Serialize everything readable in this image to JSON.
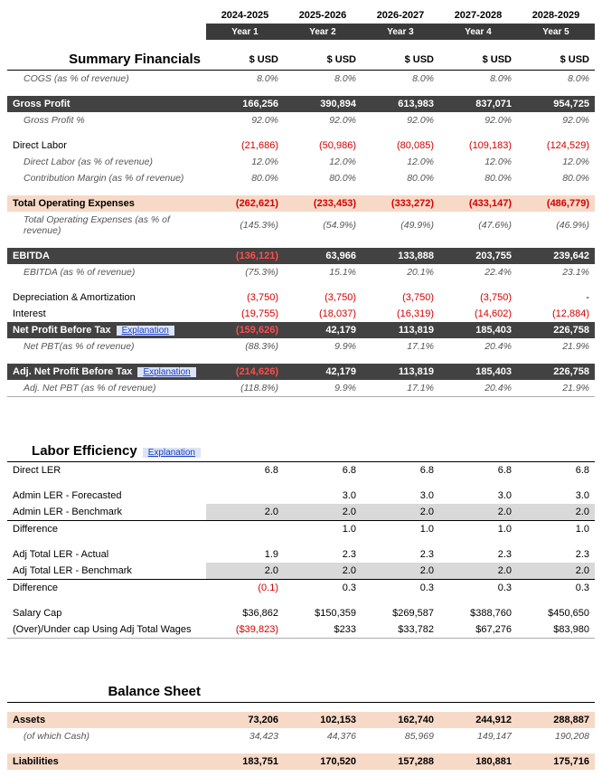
{
  "periods": [
    "2024-2025",
    "2025-2026",
    "2026-2027",
    "2027-2028",
    "2028-2029"
  ],
  "year_labels": [
    "Year 1",
    "Year 2",
    "Year 3",
    "Year 4",
    "Year 5"
  ],
  "usd": "$ USD",
  "explanation_label": "Explanation",
  "summary_title": "Summary Financials",
  "cogs": {
    "label": "COGS (as % of revenue)",
    "vals": [
      "8.0%",
      "8.0%",
      "8.0%",
      "8.0%",
      "8.0%"
    ]
  },
  "gross_profit": {
    "label": "Gross Profit",
    "vals": [
      "166,256",
      "390,894",
      "613,983",
      "837,071",
      "954,725"
    ]
  },
  "gross_profit_pct": {
    "label": "Gross Profit %",
    "vals": [
      "92.0%",
      "92.0%",
      "92.0%",
      "92.0%",
      "92.0%"
    ]
  },
  "direct_labor": {
    "label": "Direct Labor",
    "vals": [
      "(21,686)",
      "(50,986)",
      "(80,085)",
      "(109,183)",
      "(124,529)"
    ],
    "neg": [
      true,
      true,
      true,
      true,
      true
    ]
  },
  "direct_labor_pct": {
    "label": "Direct Labor (as % of revenue)",
    "vals": [
      "12.0%",
      "12.0%",
      "12.0%",
      "12.0%",
      "12.0%"
    ]
  },
  "contrib_margin": {
    "label": "Contribution Margin (as % of revenue)",
    "vals": [
      "80.0%",
      "80.0%",
      "80.0%",
      "80.0%",
      "80.0%"
    ]
  },
  "opex": {
    "label": "Total Operating Expenses",
    "vals": [
      "(262,621)",
      "(233,453)",
      "(333,272)",
      "(433,147)",
      "(486,779)"
    ],
    "neg": [
      true,
      true,
      true,
      true,
      true
    ]
  },
  "opex_pct": {
    "label": "Total Operating Expenses (as % of revenue)",
    "vals": [
      "(145.3%)",
      "(54.9%)",
      "(49.9%)",
      "(47.6%)",
      "(46.9%)"
    ],
    "neg": [
      true,
      true,
      true,
      true,
      true
    ]
  },
  "ebitda": {
    "label": "EBITDA",
    "vals": [
      "(136,121)",
      "63,966",
      "133,888",
      "203,755",
      "239,642"
    ],
    "neg": [
      true,
      false,
      false,
      false,
      false
    ]
  },
  "ebitda_pct": {
    "label": "EBITDA (as % of revenue)",
    "vals": [
      "(75.3%)",
      "15.1%",
      "20.1%",
      "22.4%",
      "23.1%"
    ],
    "neg": [
      true,
      false,
      false,
      false,
      false
    ]
  },
  "da": {
    "label": "Depreciation & Amortization",
    "vals": [
      "(3,750)",
      "(3,750)",
      "(3,750)",
      "(3,750)",
      "-"
    ],
    "neg": [
      true,
      true,
      true,
      true,
      false
    ]
  },
  "interest": {
    "label": "Interest",
    "vals": [
      "(19,755)",
      "(18,037)",
      "(16,319)",
      "(14,602)",
      "(12,884)"
    ],
    "neg": [
      true,
      true,
      true,
      true,
      true
    ]
  },
  "npbt": {
    "label": "Net Profit Before Tax",
    "vals": [
      "(159,626)",
      "42,179",
      "113,819",
      "185,403",
      "226,758"
    ],
    "neg": [
      true,
      false,
      false,
      false,
      false
    ]
  },
  "npbt_pct": {
    "label": "Net PBT(as % of revenue)",
    "vals": [
      "(88.3%)",
      "9.9%",
      "17.1%",
      "20.4%",
      "21.9%"
    ],
    "neg": [
      true,
      false,
      false,
      false,
      false
    ]
  },
  "adj_npbt": {
    "label": "Adj. Net Profit Before Tax",
    "vals": [
      "(214,626)",
      "42,179",
      "113,819",
      "185,403",
      "226,758"
    ],
    "neg": [
      true,
      false,
      false,
      false,
      false
    ]
  },
  "adj_npbt_pct": {
    "label": "Adj. Net PBT (as % of revenue)",
    "vals": [
      "(118.8%)",
      "9.9%",
      "17.1%",
      "20.4%",
      "21.9%"
    ],
    "neg": [
      true,
      false,
      false,
      false,
      false
    ]
  },
  "labor_title": "Labor Efficiency",
  "direct_ler": {
    "label": "Direct LER",
    "vals": [
      "6.8",
      "6.8",
      "6.8",
      "6.8",
      "6.8"
    ]
  },
  "admin_ler_f": {
    "label": "Admin LER - Forecasted",
    "vals": [
      "",
      "3.0",
      "3.0",
      "3.0",
      "3.0"
    ]
  },
  "admin_ler_b": {
    "label": "Admin LER - Benchmark",
    "vals": [
      "2.0",
      "2.0",
      "2.0",
      "2.0",
      "2.0"
    ]
  },
  "admin_diff": {
    "label": "Difference",
    "vals": [
      "",
      "1.0",
      "1.0",
      "1.0",
      "1.0"
    ]
  },
  "adj_ler_a": {
    "label": "Adj Total LER - Actual",
    "vals": [
      "1.9",
      "2.3",
      "2.3",
      "2.3",
      "2.3"
    ]
  },
  "adj_ler_b": {
    "label": "Adj Total LER - Benchmark",
    "vals": [
      "2.0",
      "2.0",
      "2.0",
      "2.0",
      "2.0"
    ]
  },
  "adj_diff": {
    "label": "Difference",
    "vals": [
      "(0.1)",
      "0.3",
      "0.3",
      "0.3",
      "0.3"
    ],
    "neg": [
      true,
      false,
      false,
      false,
      false
    ]
  },
  "salary_cap": {
    "label": "Salary Cap",
    "vals": [
      "$36,862",
      "$150,359",
      "$269,587",
      "$388,760",
      "$450,650"
    ]
  },
  "over_under": {
    "label": "(Over)/Under cap Using Adj Total Wages",
    "vals": [
      "($39,823)",
      "$233",
      "$33,782",
      "$67,276",
      "$83,980"
    ],
    "neg": [
      true,
      false,
      false,
      false,
      false
    ]
  },
  "bs_title": "Balance Sheet",
  "assets": {
    "label": "Assets",
    "vals": [
      "73,206",
      "102,153",
      "162,740",
      "244,912",
      "288,887"
    ]
  },
  "cash": {
    "label": "(of which Cash)",
    "vals": [
      "34,423",
      "44,376",
      "85,969",
      "149,147",
      "190,208"
    ]
  },
  "liab": {
    "label": "Liabilities",
    "vals": [
      "183,751",
      "170,520",
      "157,288",
      "180,881",
      "175,716"
    ]
  },
  "colors": {
    "dark_row": "#424242",
    "peach_row": "#f7d9c7",
    "grey_cell": "#d9d9d9",
    "negative": "#d40000",
    "link_bg": "#dce4f7",
    "link_fg": "#1a3fc9"
  }
}
